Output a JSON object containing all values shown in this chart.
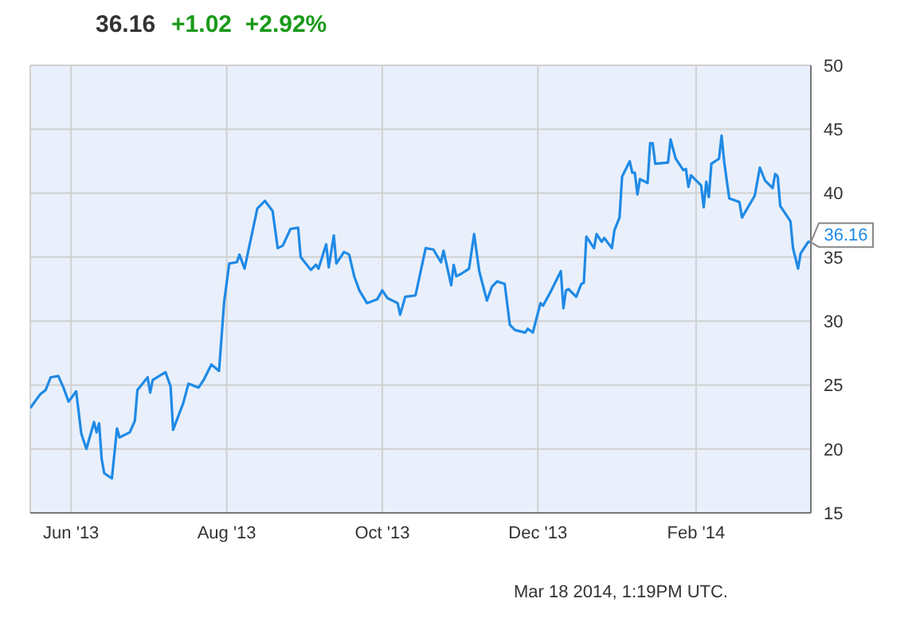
{
  "chart_data": {
    "type": "line",
    "title": "36.16",
    "subtitle": "+1.02  +2.92%",
    "x": [
      "2013-05-16",
      "2013-05-20",
      "2013-05-22",
      "2013-05-24",
      "2013-05-27",
      "2013-05-29",
      "2013-05-31",
      "2013-06-03",
      "2013-06-05",
      "2013-06-07",
      "2013-06-10",
      "2013-06-11",
      "2013-06-12",
      "2013-06-13",
      "2013-06-14",
      "2013-06-17",
      "2013-06-19",
      "2013-06-20",
      "2013-06-24",
      "2013-06-26",
      "2013-06-27",
      "2013-07-01",
      "2013-07-02",
      "2013-07-03",
      "2013-07-08",
      "2013-07-10",
      "2013-07-11",
      "2013-07-15",
      "2013-07-17",
      "2013-07-21",
      "2013-07-23",
      "2013-07-26",
      "2013-07-29",
      "2013-07-31",
      "2013-08-02",
      "2013-08-05",
      "2013-08-06",
      "2013-08-08",
      "2013-08-13",
      "2013-08-16",
      "2013-08-19",
      "2013-08-21",
      "2013-08-23",
      "2013-08-26",
      "2013-08-29",
      "2013-08-30",
      "2013-09-03",
      "2013-09-05",
      "2013-09-06",
      "2013-09-09",
      "2013-09-10",
      "2013-09-12",
      "2013-09-13",
      "2013-09-16",
      "2013-09-18",
      "2013-09-20",
      "2013-09-22",
      "2013-09-25",
      "2013-09-29",
      "2013-10-01",
      "2013-10-03",
      "2013-10-07",
      "2013-10-08",
      "2013-10-10",
      "2013-10-14",
      "2013-10-18",
      "2013-10-21",
      "2013-10-24",
      "2013-10-25",
      "2013-10-28",
      "2013-10-29",
      "2013-10-30",
      "2013-11-01",
      "2013-11-04",
      "2013-11-06",
      "2013-11-08",
      "2013-11-11",
      "2013-11-13",
      "2013-11-15",
      "2013-11-18",
      "2013-11-20",
      "2013-11-22",
      "2013-11-26",
      "2013-11-27",
      "2013-11-29",
      "2013-12-02",
      "2013-12-03",
      "2013-12-06",
      "2013-12-10",
      "2013-12-11",
      "2013-12-12",
      "2013-12-13",
      "2013-12-16",
      "2013-12-18",
      "2013-12-19",
      "2013-12-20",
      "2013-12-23",
      "2013-12-24",
      "2013-12-26",
      "2013-12-27",
      "2013-12-30",
      "2013-12-31",
      "2014-01-02",
      "2014-01-03",
      "2014-01-06",
      "2014-01-07",
      "2014-01-08",
      "2014-01-09",
      "2014-01-10",
      "2014-01-13",
      "2014-01-14",
      "2014-01-15",
      "2014-01-16",
      "2014-01-21",
      "2014-01-22",
      "2014-01-24",
      "2014-01-27",
      "2014-01-28",
      "2014-01-29",
      "2014-01-30",
      "2014-02-03",
      "2014-02-04",
      "2014-02-05",
      "2014-02-06",
      "2014-02-07",
      "2014-02-10",
      "2014-02-11",
      "2014-02-12",
      "2014-02-14",
      "2014-02-18",
      "2014-02-19",
      "2014-02-24",
      "2014-02-26",
      "2014-02-28",
      "2014-03-03",
      "2014-03-04",
      "2014-03-05",
      "2014-03-06",
      "2014-03-10",
      "2014-03-11",
      "2014-03-13",
      "2014-03-14",
      "2014-03-17",
      "2014-03-18"
    ],
    "series": [
      {
        "color": "#1f8ae6",
        "values": [
          23.2,
          24.3,
          24.6,
          25.6,
          25.7,
          24.8,
          23.7,
          24.5,
          21.2,
          20.0,
          22.1,
          21.3,
          22.0,
          19.2,
          18.1,
          17.7,
          21.6,
          20.9,
          21.3,
          22.2,
          24.6,
          25.6,
          24.4,
          25.4,
          26.0,
          24.9,
          21.5,
          23.6,
          25.1,
          24.8,
          25.4,
          26.6,
          26.1,
          31.5,
          34.5,
          34.6,
          35.2,
          34.1,
          38.8,
          39.4,
          38.6,
          35.7,
          35.9,
          37.2,
          37.3,
          35.0,
          34.0,
          34.4,
          34.1,
          36.0,
          34.2,
          36.7,
          34.5,
          35.4,
          35.2,
          33.5,
          32.4,
          31.4,
          31.7,
          32.4,
          31.8,
          31.4,
          30.5,
          31.9,
          32.0,
          35.7,
          35.6,
          34.6,
          35.5,
          32.8,
          34.4,
          33.5,
          33.7,
          34.1,
          36.8,
          33.9,
          31.6,
          32.7,
          33.1,
          32.9,
          29.7,
          29.3,
          29.1,
          29.4,
          29.1,
          31.4,
          31.2,
          32.3,
          33.9,
          31.0,
          32.4,
          32.5,
          31.9,
          32.9,
          33.0,
          36.6,
          35.7,
          36.8,
          36.2,
          36.5,
          35.7,
          37.1,
          38.1,
          41.3,
          42.5,
          41.6,
          41.6,
          39.9,
          41.1,
          40.8,
          43.9,
          43.9,
          42.3,
          42.4,
          44.2,
          42.7,
          41.8,
          41.9,
          40.5,
          41.4,
          40.6,
          38.9,
          40.9,
          39.7,
          42.3,
          42.7,
          44.5,
          42.5,
          39.6,
          39.3,
          38.1,
          39.8,
          42.0,
          41.0,
          40.4,
          41.5,
          41.3,
          39.0,
          37.8,
          35.7,
          34.1,
          35.3,
          36.2,
          36.16
        ]
      }
    ],
    "xlim": [
      "2013-05-16",
      "2014-03-18"
    ],
    "xticks": [
      {
        "value": "2013-06-01",
        "label": "Jun '13"
      },
      {
        "value": "2013-08-01",
        "label": "Aug '13"
      },
      {
        "value": "2013-10-01",
        "label": "Oct '13"
      },
      {
        "value": "2013-12-01",
        "label": "Dec '13"
      },
      {
        "value": "2014-02-01",
        "label": "Feb '14"
      }
    ],
    "ylim": [
      15,
      50
    ],
    "yticks": [
      15,
      20,
      25,
      30,
      35,
      40,
      45,
      50
    ],
    "grid": true,
    "marker": "none",
    "line_style": "solid",
    "annotations": [
      {
        "text": "36.16",
        "x": "2014-03-18",
        "y": 36.16
      },
      "Mar 18 2014, 1:19PM UTC."
    ]
  }
}
